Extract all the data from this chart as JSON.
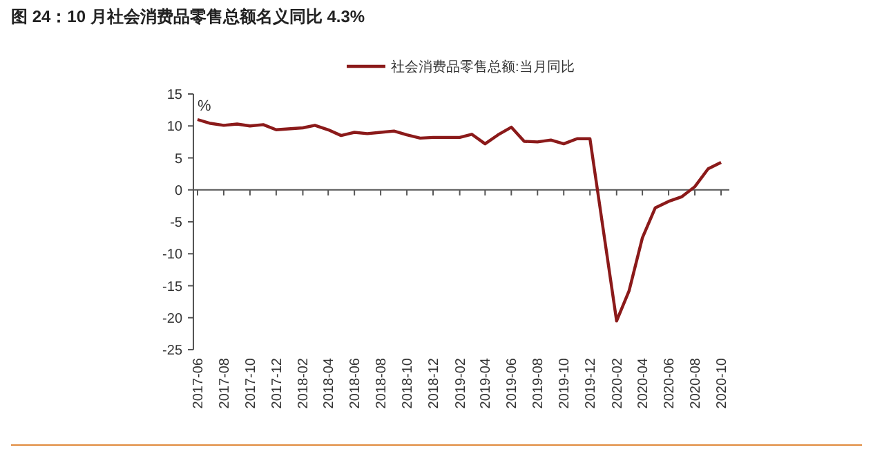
{
  "chart_data": {
    "type": "line",
    "title": "图 24：10 月社会消费品零售总额名义同比 4.3%",
    "ylabel": "%",
    "legend": "top",
    "marker": "none",
    "line_style": "solid",
    "x": [
      "2017-06",
      "2017-07",
      "2017-08",
      "2017-09",
      "2017-10",
      "2017-11",
      "2017-12",
      "2018-02",
      "2018-03",
      "2018-04",
      "2018-05",
      "2018-06",
      "2018-07",
      "2018-08",
      "2018-09",
      "2018-10",
      "2018-11",
      "2018-12",
      "2019-02",
      "2019-03",
      "2019-04",
      "2019-05",
      "2019-06",
      "2019-07",
      "2019-08",
      "2019-09",
      "2019-10",
      "2019-11",
      "2019-12",
      "2020-02",
      "2020-03",
      "2020-04",
      "2020-05",
      "2020-06",
      "2020-07",
      "2020-08",
      "2020-09",
      "2020-10"
    ],
    "series": [
      {
        "name": "社会消费品零售总额:当月同比",
        "color": "#8b1a1a",
        "values": [
          11.0,
          10.4,
          10.1,
          10.3,
          10.0,
          10.2,
          9.4,
          9.7,
          10.1,
          9.4,
          8.5,
          9.0,
          8.8,
          9.0,
          9.2,
          8.6,
          8.1,
          8.2,
          8.2,
          8.7,
          7.2,
          8.6,
          9.8,
          7.6,
          7.5,
          7.8,
          7.2,
          8.0,
          8.0,
          -20.5,
          -15.8,
          -7.5,
          -2.8,
          -1.8,
          -1.1,
          0.5,
          3.3,
          4.3
        ]
      }
    ],
    "xlim": [
      "2017-06",
      "2020-10"
    ],
    "xticks": [
      "2017-06",
      "2017-08",
      "2017-10",
      "2017-12",
      "2018-02",
      "2018-04",
      "2018-06",
      "2018-08",
      "2018-10",
      "2018-12",
      "2019-02",
      "2019-04",
      "2019-06",
      "2019-08",
      "2019-10",
      "2019-12",
      "2020-02",
      "2020-04",
      "2020-06",
      "2020-08",
      "2020-10"
    ],
    "ylim": [
      -25,
      15
    ],
    "yticks": [
      -25,
      -20,
      -15,
      -10,
      -5,
      0,
      5,
      10,
      15
    ]
  }
}
